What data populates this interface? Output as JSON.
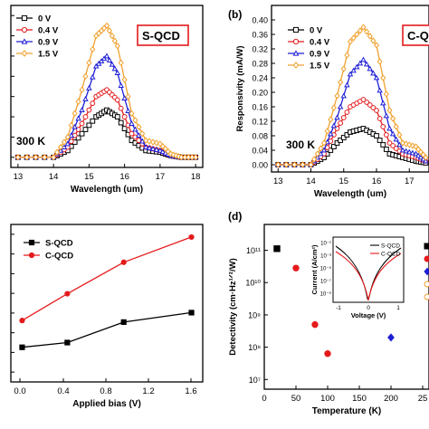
{
  "figure_labels": {
    "panel_b": "(b)",
    "panel_d": "(d)"
  },
  "chart_data": [
    {
      "panel": "a",
      "type": "line",
      "xlabel": "Wavelength (um)",
      "ylabel": "",
      "xlim": [
        12.8,
        18.2
      ],
      "ylim": [
        -0.03,
        0.45
      ],
      "xticks": [
        "13",
        "14",
        "15",
        "16",
        "17",
        "18"
      ],
      "annotation": "300 K",
      "box_label": "S-QCD",
      "legend": "top-left",
      "series": [
        {
          "name": "0 V",
          "color": "#000000",
          "marker": "square",
          "x": [
            13.0,
            14.0,
            14.4,
            14.8,
            15.2,
            15.5,
            15.8,
            16.2,
            16.6,
            17.0,
            17.3,
            17.6,
            18.0
          ],
          "y": [
            0,
            0,
            0.02,
            0.07,
            0.12,
            0.14,
            0.12,
            0.05,
            0.02,
            0.015,
            0.005,
            0,
            0
          ]
        },
        {
          "name": "0.4 V",
          "color": "#e41a1c",
          "marker": "circle",
          "x": [
            13.0,
            14.0,
            14.4,
            14.8,
            15.2,
            15.5,
            15.8,
            16.2,
            16.6,
            17.0,
            17.3,
            17.6,
            18.0
          ],
          "y": [
            0,
            0,
            0.03,
            0.1,
            0.18,
            0.2,
            0.17,
            0.07,
            0.03,
            0.02,
            0.005,
            0,
            0
          ]
        },
        {
          "name": "0.9 V",
          "color": "#1f1fd6",
          "marker": "triangle",
          "x": [
            13.0,
            14.0,
            14.4,
            14.8,
            15.2,
            15.5,
            15.8,
            16.2,
            16.6,
            17.0,
            17.3,
            17.6,
            18.0
          ],
          "y": [
            0,
            0,
            0.04,
            0.14,
            0.27,
            0.3,
            0.25,
            0.1,
            0.03,
            0.02,
            0.005,
            0,
            0
          ]
        },
        {
          "name": "1.5 V",
          "color": "#f2a12e",
          "marker": "diamond",
          "x": [
            13.0,
            14.0,
            14.4,
            14.8,
            15.2,
            15.5,
            15.8,
            16.2,
            16.6,
            17.0,
            17.3,
            17.6,
            18.0
          ],
          "y": [
            0,
            0,
            0.06,
            0.2,
            0.36,
            0.39,
            0.33,
            0.13,
            0.05,
            0.04,
            0.01,
            0,
            0
          ]
        }
      ]
    },
    {
      "panel": "b",
      "type": "line",
      "xlabel": "Wavelength (um)",
      "ylabel": "Responsivity (mA/W)",
      "xlim": [
        12.8,
        17.6
      ],
      "ylim": [
        -0.02,
        0.44
      ],
      "xticks": [
        "13",
        "14",
        "15",
        "16",
        "17"
      ],
      "yticks": [
        "0.00",
        "0.04",
        "0.08",
        "0.12",
        "0.16",
        "0.20",
        "0.24",
        "0.28",
        "0.32",
        "0.36",
        "0.40"
      ],
      "annotation": "300 K",
      "box_label": "C-Q",
      "legend": "top-left",
      "series": [
        {
          "name": "0 V",
          "color": "#000000",
          "marker": "square",
          "x": [
            13.0,
            14.0,
            14.4,
            14.8,
            15.2,
            15.6,
            16.0,
            16.4,
            16.8,
            17.2,
            17.5
          ],
          "y": [
            0,
            0,
            0.02,
            0.06,
            0.09,
            0.1,
            0.08,
            0.03,
            0.02,
            0.01,
            0.005
          ]
        },
        {
          "name": "0.4 V",
          "color": "#e41a1c",
          "marker": "circle",
          "x": [
            13.0,
            14.0,
            14.4,
            14.8,
            15.2,
            15.6,
            16.0,
            16.4,
            16.8,
            17.2,
            17.5
          ],
          "y": [
            0,
            0,
            0.03,
            0.1,
            0.16,
            0.18,
            0.15,
            0.06,
            0.03,
            0.02,
            0.01
          ]
        },
        {
          "name": "0.9 V",
          "color": "#1f1fd6",
          "marker": "triangle",
          "x": [
            13.0,
            14.0,
            14.4,
            14.8,
            15.2,
            15.6,
            16.0,
            16.4,
            16.8,
            17.2,
            17.5
          ],
          "y": [
            0,
            0,
            0.04,
            0.13,
            0.25,
            0.29,
            0.24,
            0.1,
            0.04,
            0.03,
            0.01
          ]
        },
        {
          "name": "1.5 V",
          "color": "#f2a12e",
          "marker": "diamond",
          "x": [
            13.0,
            14.0,
            14.4,
            14.8,
            15.2,
            15.6,
            16.0,
            16.4,
            16.8,
            17.2,
            17.5
          ],
          "y": [
            0,
            0,
            0.06,
            0.19,
            0.34,
            0.38,
            0.33,
            0.15,
            0.06,
            0.05,
            0.02
          ]
        }
      ]
    },
    {
      "panel": "c",
      "type": "line",
      "xlabel": "Applied bias (V)",
      "ylabel": "",
      "xlim": [
        -0.1,
        1.6
      ],
      "ylim": [
        0,
        1
      ],
      "xticks": [
        "0.0",
        "0.4",
        "0.8",
        "1.2",
        "1.6"
      ],
      "legend": "top-left",
      "series": [
        {
          "name": "S-QCD",
          "color": "#000000",
          "marker": "square",
          "x": [
            0.0,
            0.4,
            0.9,
            1.5
          ],
          "y": [
            0.22,
            0.25,
            0.38,
            0.44
          ]
        },
        {
          "name": "C-QCD",
          "color": "#e41a1c",
          "marker": "circle",
          "x": [
            0.0,
            0.4,
            0.9,
            1.5
          ],
          "y": [
            0.39,
            0.56,
            0.76,
            0.92
          ]
        }
      ]
    },
    {
      "panel": "d",
      "type": "scatter",
      "xlabel": "Temperature (K)",
      "ylabel": "Detectivity (cm·Hz¹ᐟ²/W)",
      "log_y": true,
      "xlim": [
        0,
        260
      ],
      "ylim": [
        6.7,
        11.8
      ],
      "xticks": [
        "0",
        "50",
        "100",
        "150",
        "200",
        "25"
      ],
      "yticks": [
        "10⁷",
        "10⁸",
        "10⁹",
        "10¹⁰",
        "10¹¹"
      ],
      "series": [
        {
          "marker": "square",
          "color": "#000000",
          "x": [
            20
          ],
          "y": [
            11.05
          ]
        },
        {
          "marker": "circle",
          "color": "#e41a1c",
          "x": [
            50,
            80,
            100
          ],
          "y": [
            10.45,
            8.7,
            7.8
          ]
        },
        {
          "marker": "diamond",
          "color": "#1f1fd6",
          "x": [
            200
          ],
          "y": [
            8.3
          ]
        }
      ],
      "inset": {
        "xlabel": "Voltage (V)",
        "ylabel": "Current (A/cm²)",
        "xticks": [
          "-1",
          "0",
          "1"
        ],
        "yticks": [
          "10⁻¹",
          "10⁻³",
          "10⁻⁵",
          "10⁻⁷",
          "10⁻⁹"
        ],
        "series": [
          {
            "name": "S-QCD",
            "color": "#000000"
          },
          {
            "name": "C-QCD",
            "color": "#e41a1c"
          }
        ]
      }
    }
  ]
}
